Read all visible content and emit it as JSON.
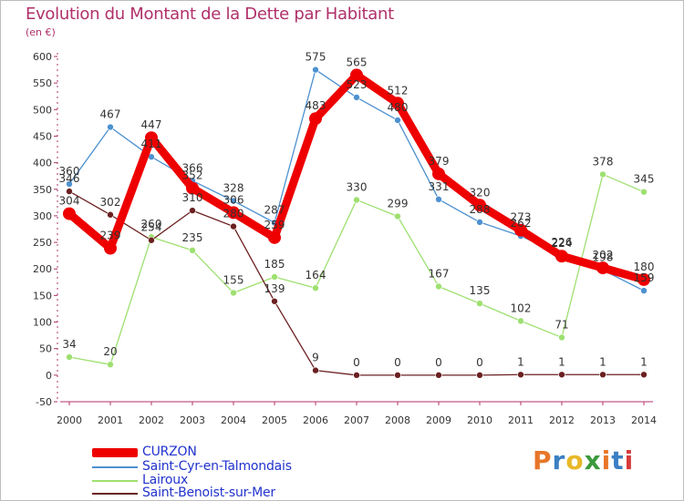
{
  "logo": {
    "text": "Proxiti",
    "colors": [
      "#e8762a",
      "#3b7fc4",
      "#e8b82a",
      "#3b9a3b",
      "#e8762a",
      "#3b7fc4",
      "#d63a3a"
    ]
  },
  "chart_data": {
    "type": "line",
    "title": "Evolution du Montant de la Dette par Habitant",
    "subtitle": "(en €)",
    "xlabel": "",
    "ylabel": "",
    "x": [
      2000,
      2001,
      2002,
      2003,
      2004,
      2005,
      2006,
      2007,
      2008,
      2009,
      2010,
      2011,
      2012,
      2013,
      2014
    ],
    "ylim": [
      -50,
      600
    ],
    "yticks": [
      -50,
      0,
      50,
      100,
      150,
      200,
      250,
      300,
      350,
      400,
      450,
      500,
      550,
      600
    ],
    "grid": false,
    "legend_position": "bottom-left",
    "series": [
      {
        "name": "CURZON",
        "color": "#ee0000",
        "values": [
          304,
          239,
          447,
          352,
          306,
          259,
          483,
          565,
          512,
          379,
          320,
          273,
          224,
          202,
          180
        ]
      },
      {
        "name": "Saint-Cyr-en-Talmondais",
        "color": "#4d91d0",
        "values": [
          360,
          467,
          411,
          366,
          328,
          287,
          575,
          523,
          480,
          331,
          288,
          262,
          226,
          198,
          159
        ]
      },
      {
        "name": "Lairoux",
        "color": "#9ee070",
        "values": [
          34,
          20,
          260,
          235,
          155,
          185,
          164,
          330,
          299,
          167,
          135,
          102,
          71,
          378,
          345
        ]
      },
      {
        "name": "Saint-Benoist-sur-Mer",
        "color": "#6b2020",
        "values": [
          346,
          302,
          254,
          310,
          280,
          139,
          9,
          0,
          0,
          0,
          0,
          1,
          1,
          1,
          1
        ]
      }
    ]
  }
}
